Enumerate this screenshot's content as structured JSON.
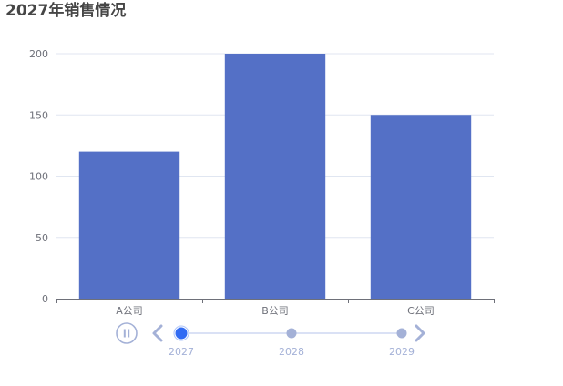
{
  "chart_data": {
    "type": "bar",
    "title": "2027年销售情况",
    "categories": [
      "A公司",
      "B公司",
      "C公司"
    ],
    "series": [
      {
        "values": [
          120,
          200,
          150
        ]
      }
    ],
    "ylim": [
      0,
      200
    ],
    "yticks": [
      0,
      50,
      100,
      150,
      200
    ],
    "grid": true,
    "bar_color": "#5470c6"
  },
  "timeline": {
    "years": [
      "2027",
      "2028",
      "2029"
    ],
    "current_index": 0,
    "playing": false,
    "colors": {
      "active": "#316bf3",
      "inactive": "#a4b1d7",
      "line": "#dae1f5",
      "label": "#a4b1d7"
    }
  }
}
